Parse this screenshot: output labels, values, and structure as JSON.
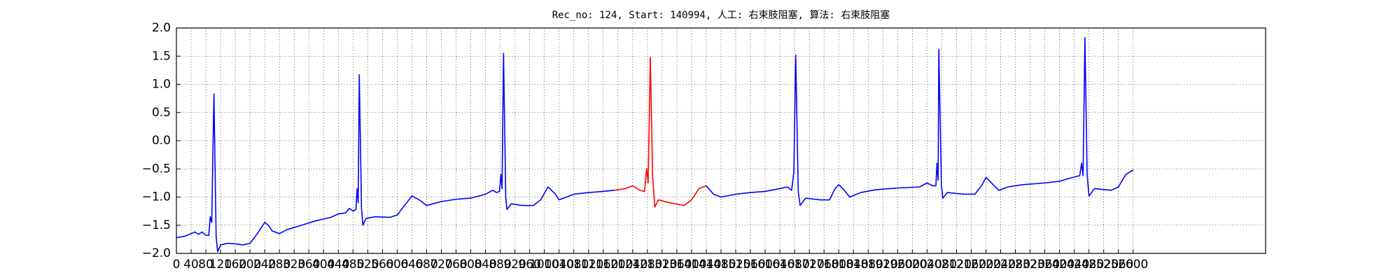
{
  "chart_data": {
    "type": "line",
    "title": "Rec_no: 124, Start: 140994, 人工: 右束肢阻塞, 算法: 右束肢阻塞",
    "x": [
      0,
      20,
      40,
      50,
      60,
      70,
      80,
      88,
      92,
      96,
      102,
      108,
      112,
      120,
      140,
      160,
      180,
      200,
      220,
      240,
      250,
      260,
      280,
      300,
      340,
      380,
      420,
      440,
      460,
      470,
      480,
      488,
      491,
      494,
      497,
      503,
      507,
      515,
      540,
      580,
      600,
      620,
      640,
      660,
      680,
      720,
      760,
      800,
      840,
      860,
      870,
      878,
      882,
      885,
      889,
      895,
      898,
      910,
      940,
      970,
      990,
      1010,
      1030,
      1040,
      1080,
      1120,
      1160,
      1190,
      1220,
      1240,
      1260,
      1272,
      1278,
      1282,
      1288,
      1294,
      1300,
      1310,
      1340,
      1380,
      1400,
      1420,
      1440,
      1460,
      1480,
      1520,
      1560,
      1600,
      1640,
      1660,
      1672,
      1678,
      1683,
      1690,
      1695,
      1710,
      1750,
      1775,
      1790,
      1800,
      1815,
      1830,
      1860,
      1900,
      1960,
      2020,
      2040,
      2055,
      2064,
      2067,
      2070,
      2072,
      2079,
      2083,
      2095,
      2140,
      2170,
      2190,
      2200,
      2215,
      2235,
      2260,
      2300,
      2360,
      2400,
      2420,
      2455,
      2460,
      2464,
      2469,
      2475,
      2480,
      2495,
      2540,
      2560,
      2580,
      2600
    ],
    "series": [
      {
        "color": "#0000ff",
        "values": [
          -1.72,
          -1.7,
          -1.65,
          -1.62,
          -1.66,
          -1.62,
          -1.68,
          -1.68,
          -1.35,
          -1.45,
          0.83,
          -1.7,
          -1.97,
          -1.85,
          -1.82,
          -1.83,
          -1.85,
          -1.82,
          -1.65,
          -1.45,
          -1.5,
          -1.6,
          -1.65,
          -1.58,
          -1.5,
          -1.42,
          -1.36,
          -1.3,
          -1.28,
          -1.2,
          -1.25,
          -1.22,
          -0.85,
          -1.1,
          1.17,
          -1.2,
          -1.5,
          -1.38,
          -1.35,
          -1.36,
          -1.32,
          -1.15,
          -0.98,
          -1.05,
          -1.15,
          -1.08,
          -1.04,
          -1.02,
          -0.95,
          -0.88,
          -0.92,
          -0.9,
          -0.6,
          -0.85,
          1.55,
          -1.0,
          -1.22,
          -1.12,
          -1.15,
          -1.15,
          -1.05,
          -0.82,
          -0.95,
          -1.05,
          -0.95,
          -0.92,
          -0.9,
          -0.88,
          null,
          null,
          null,
          null,
          null,
          null,
          null,
          null,
          null,
          null,
          null,
          null,
          null,
          null,
          -0.8,
          -0.95,
          -1.0,
          -0.95,
          -0.92,
          -0.9,
          -0.85,
          -0.82,
          -0.88,
          -0.55,
          1.52,
          -0.9,
          -1.15,
          -1.02,
          -1.05,
          -1.05,
          -0.85,
          -0.78,
          -0.88,
          -1.0,
          -0.92,
          -0.87,
          -0.84,
          -0.82,
          -0.75,
          -0.8,
          -0.8,
          -0.4,
          -0.7,
          1.62,
          -0.8,
          -1.02,
          -0.92,
          -0.95,
          -0.95,
          -0.78,
          -0.65,
          -0.75,
          -0.88,
          -0.82,
          -0.78,
          -0.75,
          -0.72,
          -0.68,
          -0.62,
          -0.4,
          -0.62,
          1.83,
          -0.6,
          -0.98,
          -0.85,
          -0.88,
          -0.82,
          -0.6,
          -0.52
        ]
      },
      {
        "color": "#ff0000",
        "values": [
          null,
          null,
          null,
          null,
          null,
          null,
          null,
          null,
          null,
          null,
          null,
          null,
          null,
          null,
          null,
          null,
          null,
          null,
          null,
          null,
          null,
          null,
          null,
          null,
          null,
          null,
          null,
          null,
          null,
          null,
          null,
          null,
          null,
          null,
          null,
          null,
          null,
          null,
          null,
          null,
          null,
          null,
          null,
          null,
          null,
          null,
          null,
          null,
          null,
          null,
          null,
          null,
          null,
          null,
          null,
          null,
          null,
          null,
          null,
          null,
          null,
          null,
          null,
          null,
          null,
          null,
          null,
          -0.88,
          -0.85,
          -0.8,
          -0.88,
          -0.9,
          -0.5,
          -0.75,
          1.48,
          -0.6,
          -1.18,
          -1.05,
          -1.1,
          -1.15,
          -1.05,
          -0.85,
          -0.8,
          null,
          null,
          null,
          null,
          null,
          null,
          null,
          null,
          null,
          null,
          null,
          null,
          null,
          null,
          null,
          null,
          null,
          null,
          null,
          null,
          null,
          null,
          null,
          null,
          null,
          null,
          null,
          null,
          null,
          null,
          null,
          null,
          null,
          null,
          null,
          null,
          null,
          null,
          null,
          null,
          null,
          null,
          null,
          null,
          null,
          null,
          null,
          null,
          null,
          null,
          null,
          null,
          null,
          null
        ]
      }
    ],
    "xlim": [
      0,
      2960
    ],
    "ylim": [
      -2,
      2
    ],
    "xticks": [
      0,
      40,
      80,
      120,
      160,
      200,
      240,
      280,
      320,
      360,
      400,
      440,
      480,
      520,
      560,
      600,
      640,
      680,
      720,
      760,
      800,
      840,
      880,
      920,
      960,
      1000,
      1040,
      1080,
      1120,
      1160,
      1200,
      1240,
      1280,
      1320,
      1360,
      1400,
      1440,
      1480,
      1520,
      1560,
      1600,
      1640,
      1680,
      1720,
      1760,
      1800,
      1840,
      1880,
      1920,
      1960,
      2000,
      2040,
      2080,
      2120,
      2160,
      2200,
      2240,
      2280,
      2320,
      2360,
      2400,
      2440,
      2480,
      2520,
      2560,
      2600
    ],
    "yticks": [
      {
        "value": -2,
        "label": "−2.0"
      },
      {
        "value": -1.5,
        "label": "−1.5"
      },
      {
        "value": -1,
        "label": "−1.0"
      },
      {
        "value": -0.5,
        "label": "−0.5"
      },
      {
        "value": 0,
        "label": "0.0"
      },
      {
        "value": 0.5,
        "label": "0.5"
      },
      {
        "value": 1,
        "label": "1.0"
      },
      {
        "value": 1.5,
        "label": "1.5"
      },
      {
        "value": 2,
        "label": "2.0"
      }
    ],
    "grid": true
  }
}
